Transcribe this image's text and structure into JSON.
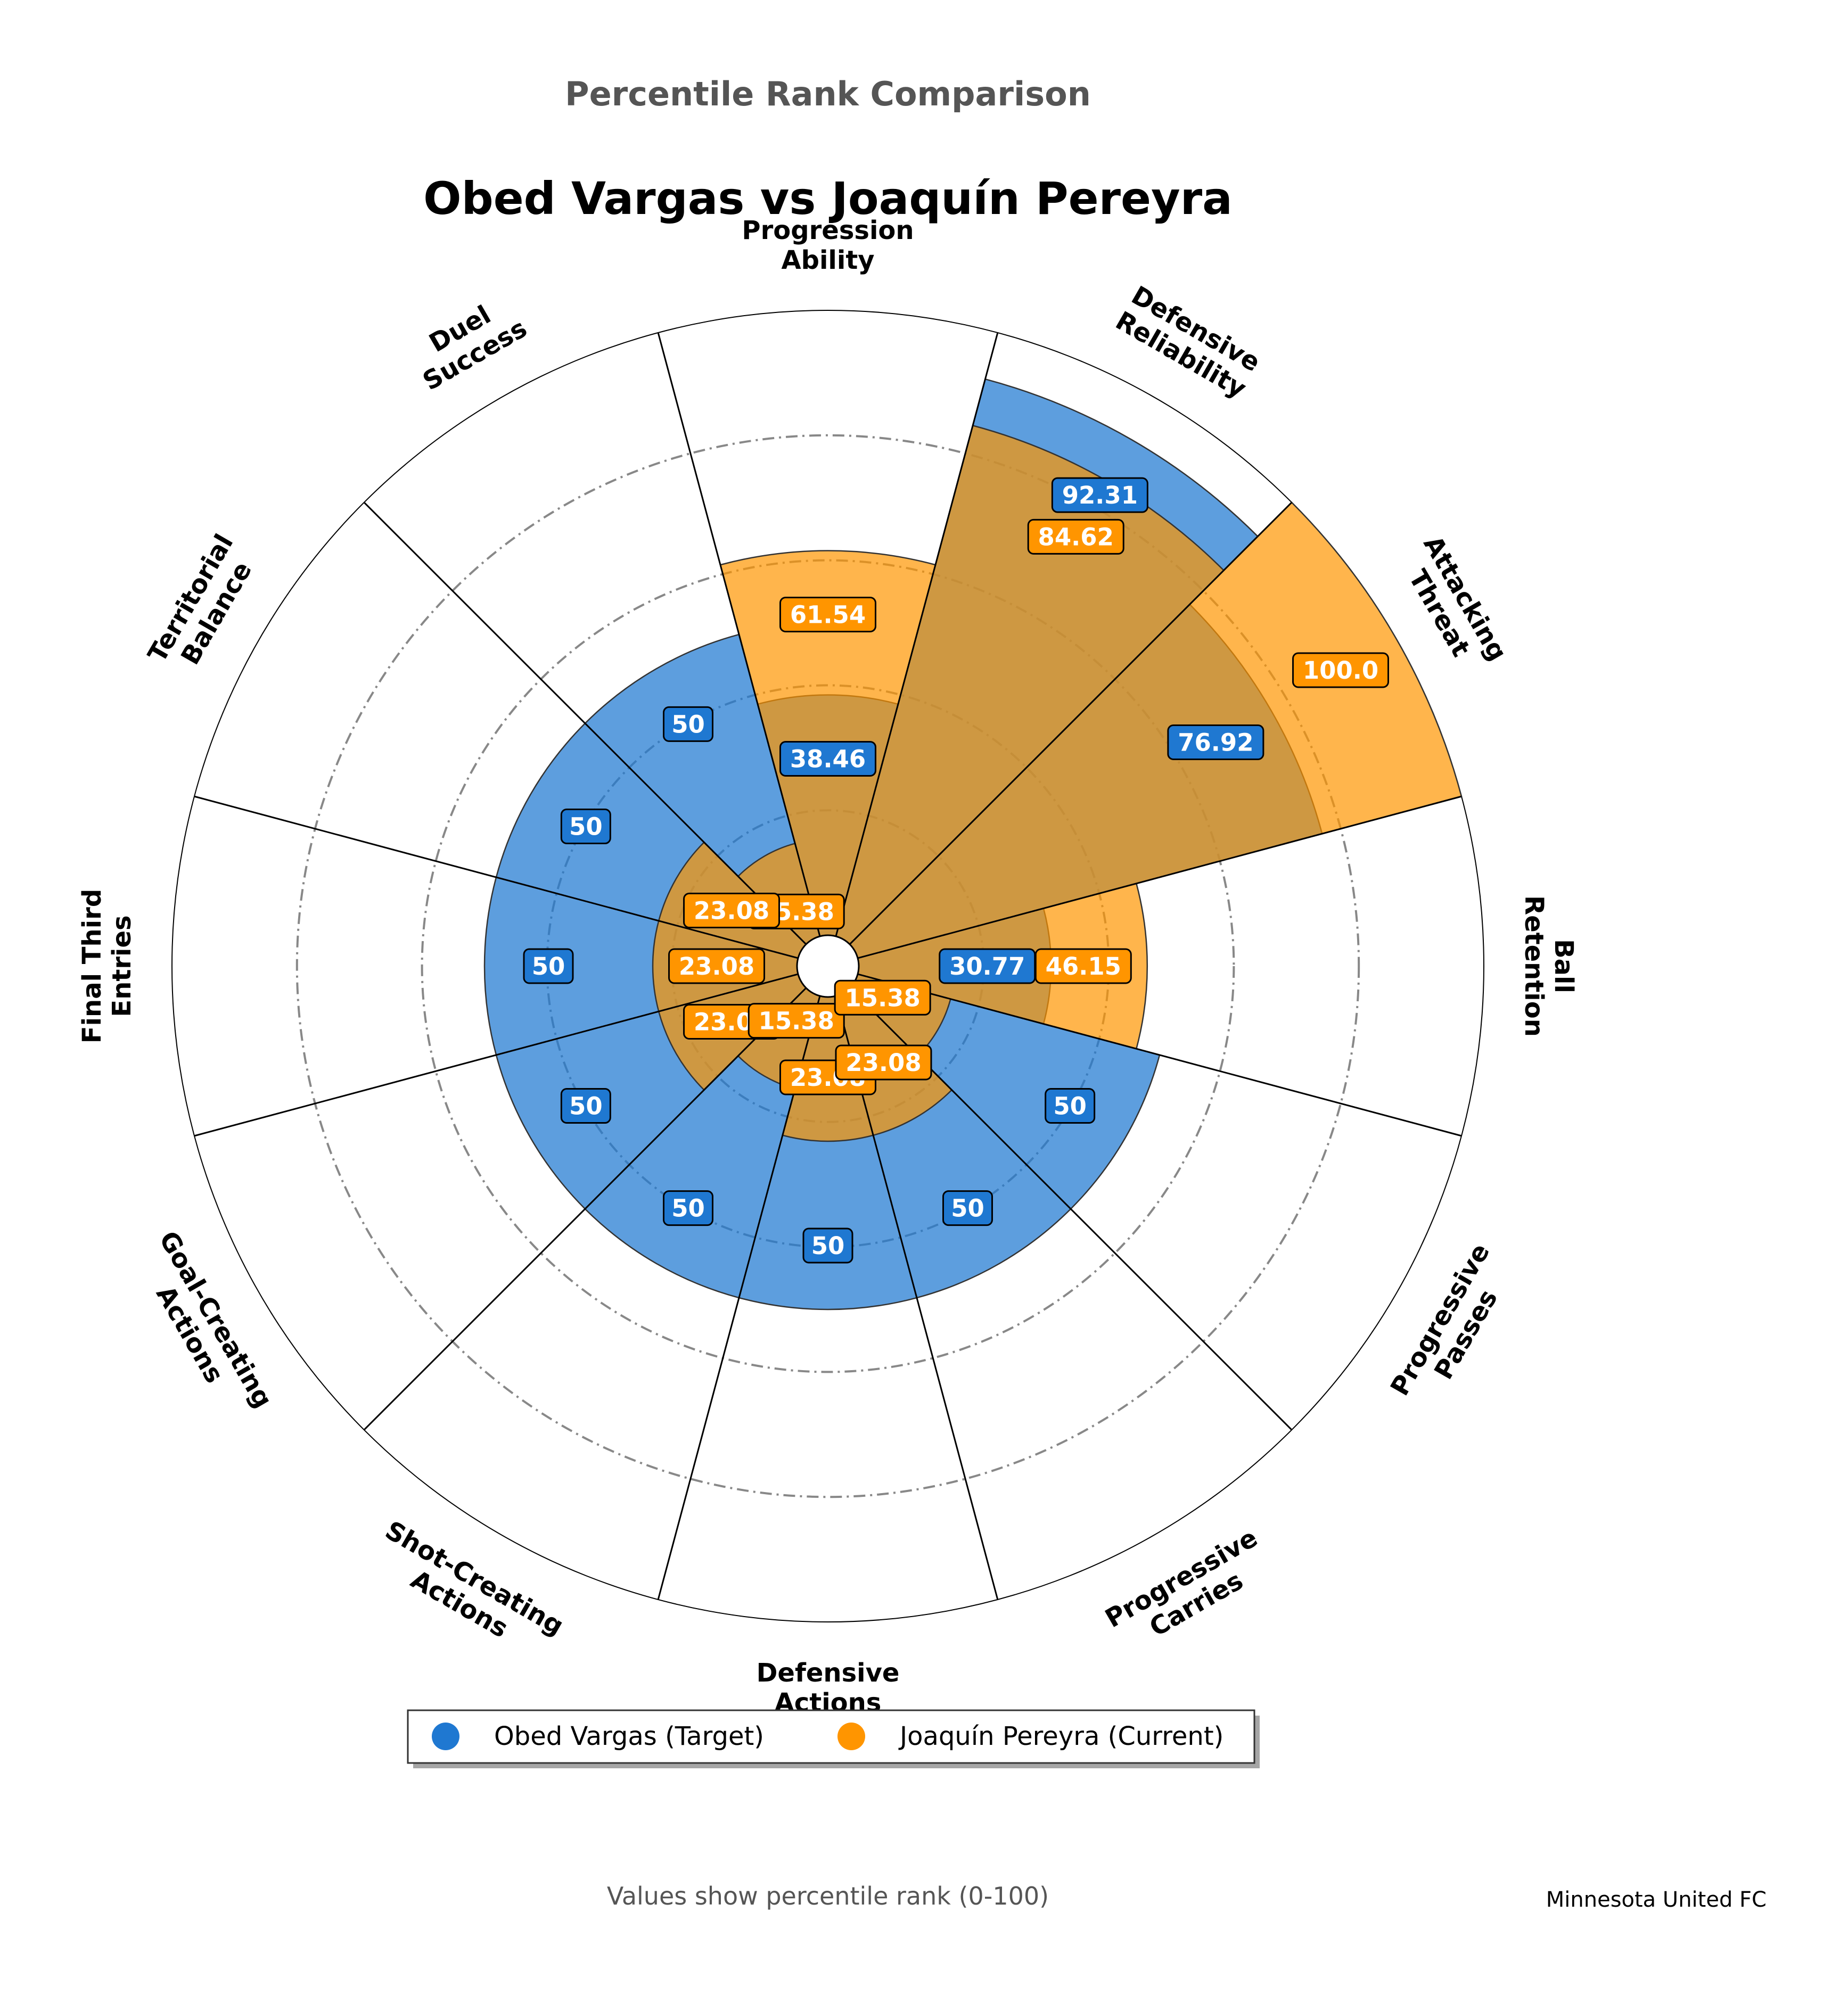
{
  "chart_data": {
    "type": "polar-bar",
    "supertitle": "Percentile Rank Comparison",
    "title": "Obed Vargas vs Joaquín Pereyra",
    "rlim": [
      0,
      100
    ],
    "grid": true,
    "legend_position": "bottom-center",
    "categories": [
      "Ball\nRetention",
      "Attacking\nThreat",
      "Defensive\nReliability",
      "Progression\nAbility",
      "Duel\nSuccess",
      "Territorial\nBalance",
      "Final Third\nEntries",
      "Goal-Creating\nActions",
      "Shot-Creating\nActions",
      "Defensive\nActions",
      "Progressive\nCarries",
      "Progressive\nPasses"
    ],
    "series": [
      {
        "name": "Obed Vargas (Target)",
        "color": "#1f78d1",
        "values": [
          30.77,
          76.92,
          92.31,
          38.46,
          50,
          50,
          50,
          50,
          50,
          50,
          50,
          50
        ],
        "labels": [
          "30.77",
          "76.92",
          "92.31",
          "38.46",
          "50",
          "50",
          "50",
          "50",
          "50",
          "50",
          "50",
          "50"
        ]
      },
      {
        "name": "Joaquín Pereyra (Current)",
        "color": "#ff9500",
        "values": [
          46.15,
          100.0,
          84.62,
          61.54,
          15.38,
          23.08,
          23.08,
          23.08,
          15.38,
          23.08,
          23.08,
          15.38
        ],
        "labels": [
          "46.15",
          "100.0",
          "84.62",
          "61.54",
          "15.38",
          "23.08",
          "23.08",
          "23.08",
          "15.38",
          "23.08",
          "23.08",
          "15.38"
        ]
      }
    ]
  },
  "footer": {
    "note": "Values show percentile rank (0-100)",
    "team": "Minnesota United FC"
  }
}
